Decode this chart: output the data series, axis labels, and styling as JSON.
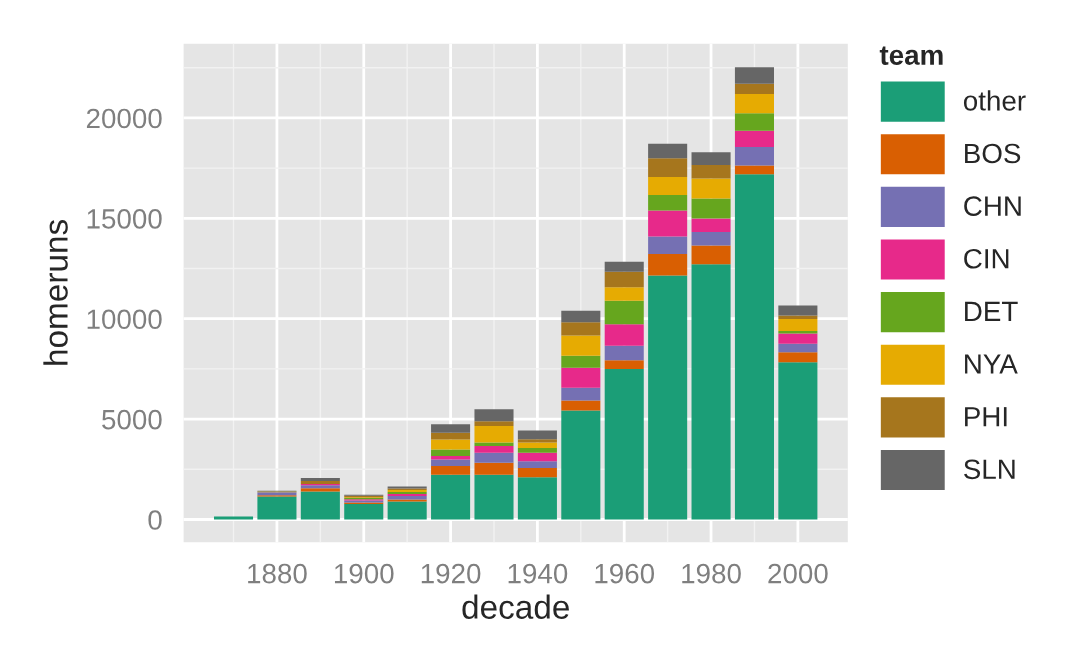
{
  "chart_data": {
    "type": "bar",
    "stacked": true,
    "xlabel": "decade",
    "ylabel": "homeruns",
    "legend_title": "team",
    "legend": "right",
    "grid": true,
    "x": [
      1870,
      1880,
      1890,
      1900,
      1910,
      1920,
      1930,
      1940,
      1950,
      1960,
      1970,
      1980,
      1990,
      2000
    ],
    "xlim": [
      1858.5,
      2011.5
    ],
    "xticks": [
      1880,
      1900,
      1920,
      1940,
      1960,
      1980,
      2000
    ],
    "ylim": [
      -1130,
      23700
    ],
    "yticks": [
      0,
      5000,
      10000,
      15000,
      20000
    ],
    "series": [
      {
        "name": "other",
        "color": "#1b9e77",
        "values": [
          150,
          1150,
          1400,
          770,
          900,
          2230,
          2230,
          2100,
          5430,
          7500,
          12150,
          12720,
          17200,
          7830
        ]
      },
      {
        "name": "BOS",
        "color": "#d95f02",
        "values": [
          0,
          60,
          150,
          80,
          100,
          430,
          600,
          470,
          500,
          430,
          1070,
          930,
          430,
          500
        ]
      },
      {
        "name": "CHN",
        "color": "#7570b3",
        "values": [
          0,
          130,
          150,
          100,
          170,
          330,
          500,
          330,
          630,
          730,
          870,
          670,
          930,
          430
        ]
      },
      {
        "name": "CIN",
        "color": "#e7298a",
        "values": [
          0,
          20,
          70,
          60,
          100,
          170,
          330,
          430,
          1000,
          1070,
          1300,
          670,
          800,
          500
        ]
      },
      {
        "name": "DET",
        "color": "#66a61e",
        "values": [
          0,
          20,
          0,
          60,
          100,
          330,
          170,
          230,
          600,
          1170,
          770,
          1000,
          870,
          130
        ]
      },
      {
        "name": "NYA",
        "color": "#e6ab02",
        "values": [
          0,
          0,
          0,
          40,
          100,
          500,
          830,
          270,
          1000,
          670,
          900,
          1000,
          970,
          600
        ]
      },
      {
        "name": "PHI",
        "color": "#a6761d",
        "values": [
          0,
          30,
          150,
          70,
          70,
          330,
          230,
          170,
          670,
          770,
          930,
          670,
          500,
          170
        ]
      },
      {
        "name": "SLN",
        "color": "#666666",
        "values": [
          0,
          20,
          150,
          50,
          100,
          430,
          600,
          430,
          570,
          500,
          730,
          630,
          830,
          500
        ]
      }
    ]
  }
}
